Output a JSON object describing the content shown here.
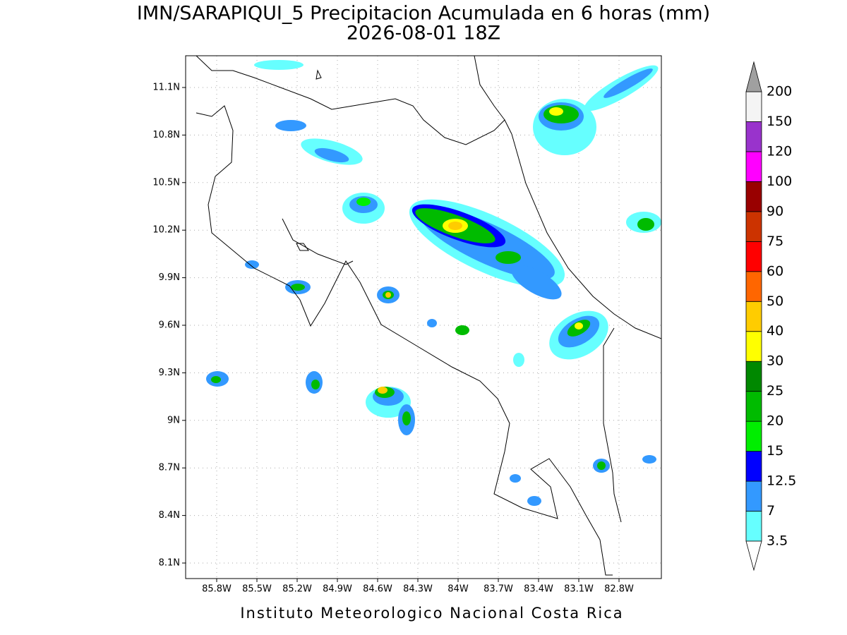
{
  "title": "IMN/SARAPIQUI_5 Precipitacion Acumulada en 6 horas (mm)",
  "subtitle": "2026-08-01 18Z",
  "map": {
    "x_labels": [
      "85.8W",
      "85.5W",
      "85.2W",
      "84.9W",
      "84.6W",
      "84.3W",
      "84W",
      "83.7W",
      "83.4W",
      "83.1W",
      "82.8W"
    ],
    "y_labels": [
      "11.1N",
      "10.8N",
      "10.5N",
      "10.2N",
      "9.9N",
      "9.6N",
      "9.3N",
      "9N",
      "8.7N",
      "8.4N",
      "8.1N"
    ]
  },
  "colorbar": {
    "labels": [
      "3.5",
      "7",
      "12.5",
      "15",
      "20",
      "25",
      "30",
      "40",
      "50",
      "60",
      "75",
      "90",
      "100",
      "120",
      "150",
      "200"
    ],
    "colors": [
      "#66ffff",
      "#3399ff",
      "#0000ff",
      "#00ee00",
      "#00bb00",
      "#008800",
      "#ffff00",
      "#ffcc00",
      "#ff6600",
      "#ff0000",
      "#cc3300",
      "#990000",
      "#ff00ff",
      "#9933cc",
      "#f4f4f4"
    ],
    "under_color": "#ffffff",
    "over_color": "#a0a0a0"
  },
  "footer": "Instituto Meteorologico Nacional Costa Rica"
}
